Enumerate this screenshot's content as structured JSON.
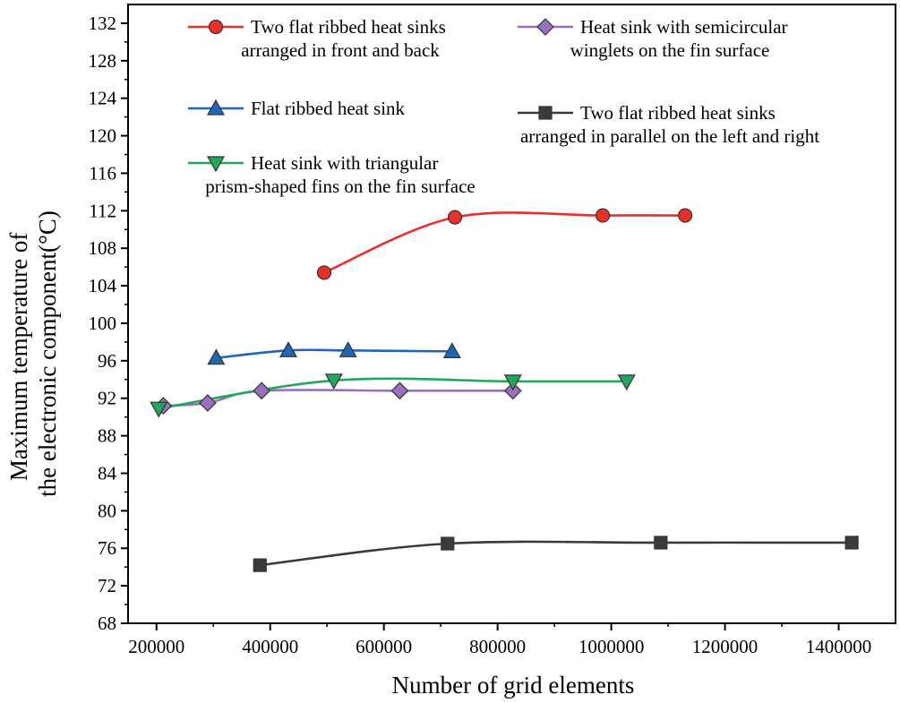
{
  "chart_data": {
    "type": "line",
    "title": "",
    "xlabel": "Number of grid elements",
    "ylabel_lines": [
      "Maximum temperature of",
      "the electronic component(°C)"
    ],
    "xlim": [
      150000,
      1500000
    ],
    "ylim": [
      68,
      134
    ],
    "xticks": [
      200000,
      400000,
      600000,
      800000,
      1000000,
      1200000,
      1400000
    ],
    "xtick_labels": [
      "200000",
      "400000",
      "600000",
      "800000",
      "1000000",
      "1200000",
      "1400000"
    ],
    "yticks": [
      68,
      72,
      76,
      80,
      84,
      88,
      92,
      96,
      100,
      104,
      108,
      112,
      116,
      120,
      124,
      128,
      132
    ],
    "ytick_labels": [
      "68",
      "72",
      "76",
      "80",
      "84",
      "88",
      "92",
      "96",
      "100",
      "104",
      "108",
      "112",
      "116",
      "120",
      "124",
      "128",
      "132"
    ],
    "grid": false,
    "series": [
      {
        "key": "front-back",
        "name_lines": [
          "Two flat ribbed heat sinks",
          "arranged in front and back"
        ],
        "color": "#e8302a",
        "marker": "circle",
        "x": [
          495000,
          725000,
          985000,
          1130000
        ],
        "y": [
          105.4,
          111.3,
          111.5,
          111.5
        ]
      },
      {
        "key": "semicircular",
        "name_lines": [
          "Heat sink with semicircular",
          "winglets on the fin surface"
        ],
        "color": "#9a6fc0",
        "marker": "diamond",
        "x": [
          212000,
          290000,
          385000,
          628000,
          827000
        ],
        "y": [
          91.2,
          91.5,
          92.8,
          92.8,
          92.8
        ]
      },
      {
        "key": "flat",
        "name_lines": [
          "Flat ribbed heat sink"
        ],
        "color": "#2166b5",
        "marker": "triangle-up",
        "x": [
          305000,
          432000,
          537000,
          720000
        ],
        "y": [
          96.3,
          97.1,
          97.1,
          97.0
        ]
      },
      {
        "key": "left-right",
        "name_lines": [
          "Two flat ribbed heat sinks",
          "arranged in parallel on the left and right"
        ],
        "color": "#3a3a3a",
        "marker": "square",
        "x": [
          382000,
          712000,
          1087000,
          1423000
        ],
        "y": [
          74.2,
          76.5,
          76.6,
          76.6
        ]
      },
      {
        "key": "triangular",
        "name_lines": [
          "Heat sink with triangular",
          "prism-shaped fins on the fin surface"
        ],
        "color": "#22a65a",
        "marker": "triangle-down",
        "x": [
          204000,
          512000,
          827000,
          1027000
        ],
        "y": [
          90.9,
          93.9,
          93.8,
          93.8
        ]
      }
    ]
  }
}
